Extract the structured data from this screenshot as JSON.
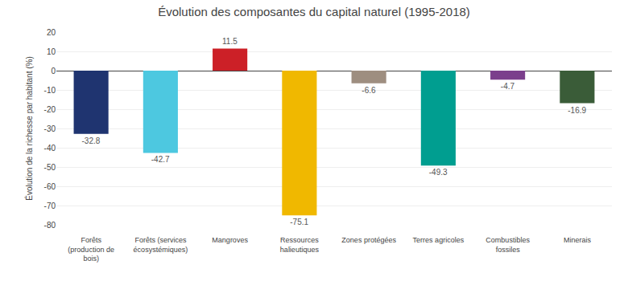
{
  "chart_data": {
    "type": "bar",
    "title": "Évolution des composantes du capital naturel (1995-2018)",
    "ylabel": "Évolution de la richesse par habitant (%)",
    "categories": [
      "Forêts\n(production de\nbois)",
      "Forêts (services\nécosystémiques)",
      "Mangroves",
      "Ressources\nhalieutiques",
      "Zones protégées",
      "Terres agricoles",
      "Combustibles\nfossiles",
      "Minerais"
    ],
    "values": [
      -32.8,
      -42.7,
      11.5,
      -75.1,
      -6.6,
      -49.3,
      -4.7,
      -16.9
    ],
    "colors": [
      "#1f3470",
      "#4dc8e0",
      "#cc2027",
      "#f0b800",
      "#9e8e80",
      "#009e90",
      "#7b3f8c",
      "#3a5c38"
    ],
    "ylim": [
      -80,
      20
    ],
    "yticks": [
      -80,
      -70,
      -60,
      -50,
      -40,
      -30,
      -20,
      -10,
      0,
      10,
      20
    ],
    "grid": true,
    "data_labels": true
  }
}
